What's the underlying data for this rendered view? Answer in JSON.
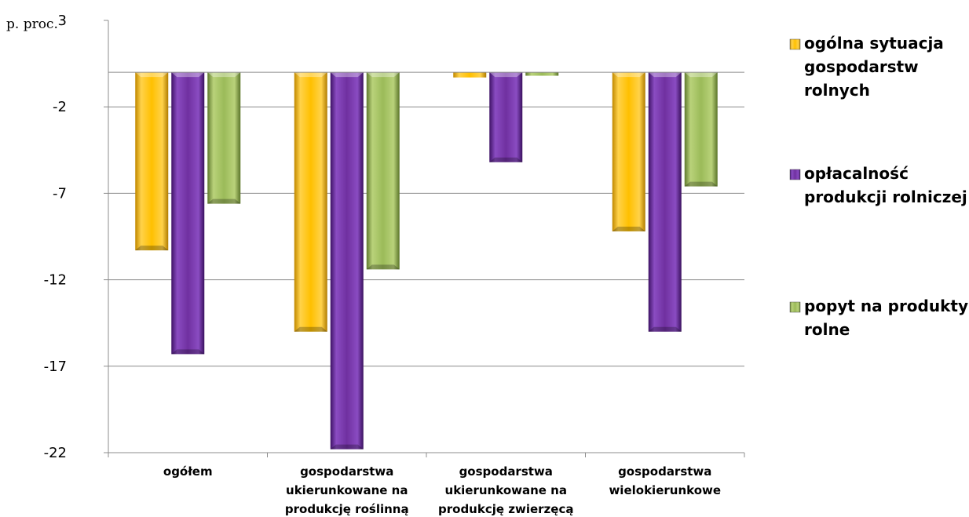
{
  "chart_data": {
    "type": "bar",
    "unit_label": "p. proc.",
    "categories": [
      [
        "ogółem"
      ],
      [
        "gospodarstwa",
        "ukierunkowane na",
        "produkcję roślinną"
      ],
      [
        "gospodarstwa",
        "ukierunkowane na",
        "produkcję zwierzęcą"
      ],
      [
        "gospodarstwa",
        "wielokierunkowe"
      ]
    ],
    "series": [
      {
        "name": [
          "ogólna sytuacja",
          "gospodarstw",
          "rolnych"
        ],
        "color": "#FFC000",
        "values": [
          -10.3,
          -15.0,
          -0.3,
          -9.2
        ]
      },
      {
        "name": [
          "opłacalność",
          "produkcji rolniczej"
        ],
        "color": "#7030A0",
        "values": [
          -16.3,
          -21.8,
          -5.2,
          -15.0
        ]
      },
      {
        "name": [
          "popyt na produkty",
          "rolne"
        ],
        "color": "#9BBB59",
        "values": [
          -7.6,
          -11.4,
          -0.2,
          -6.6
        ]
      }
    ],
    "ylim": [
      -22,
      3
    ],
    "yticks": [
      3,
      -2,
      -7,
      -12,
      -17,
      -22
    ],
    "grid": true,
    "legend": "right"
  }
}
